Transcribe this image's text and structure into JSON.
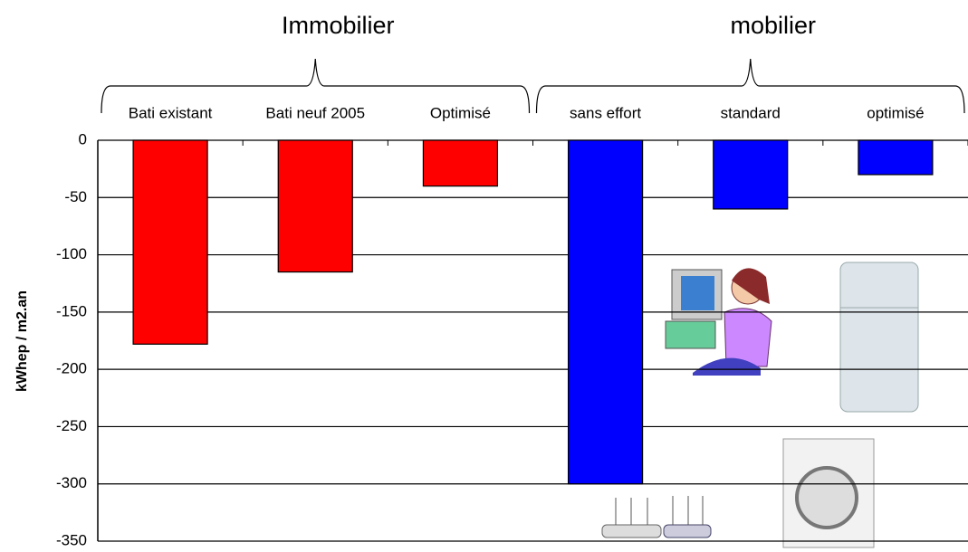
{
  "chart_data": {
    "type": "bar",
    "groups": [
      "Immobilier",
      "mobilier"
    ],
    "categories": [
      "Bati existant",
      "Bati neuf 2005",
      "Optimisé",
      "sans effort",
      "standard",
      "optimisé"
    ],
    "values": [
      -178,
      -115,
      -40,
      -300,
      -60,
      -30
    ],
    "colors": [
      "#ff0000",
      "#ff0000",
      "#ff0000",
      "#0000ff",
      "#0000ff",
      "#0000ff"
    ],
    "y_label": "kWhep / m2.an",
    "ylim": [
      -350,
      0
    ],
    "yticks": [
      0,
      -50,
      -100,
      -150,
      -200,
      -250,
      -300,
      -350
    ],
    "grid": true
  }
}
